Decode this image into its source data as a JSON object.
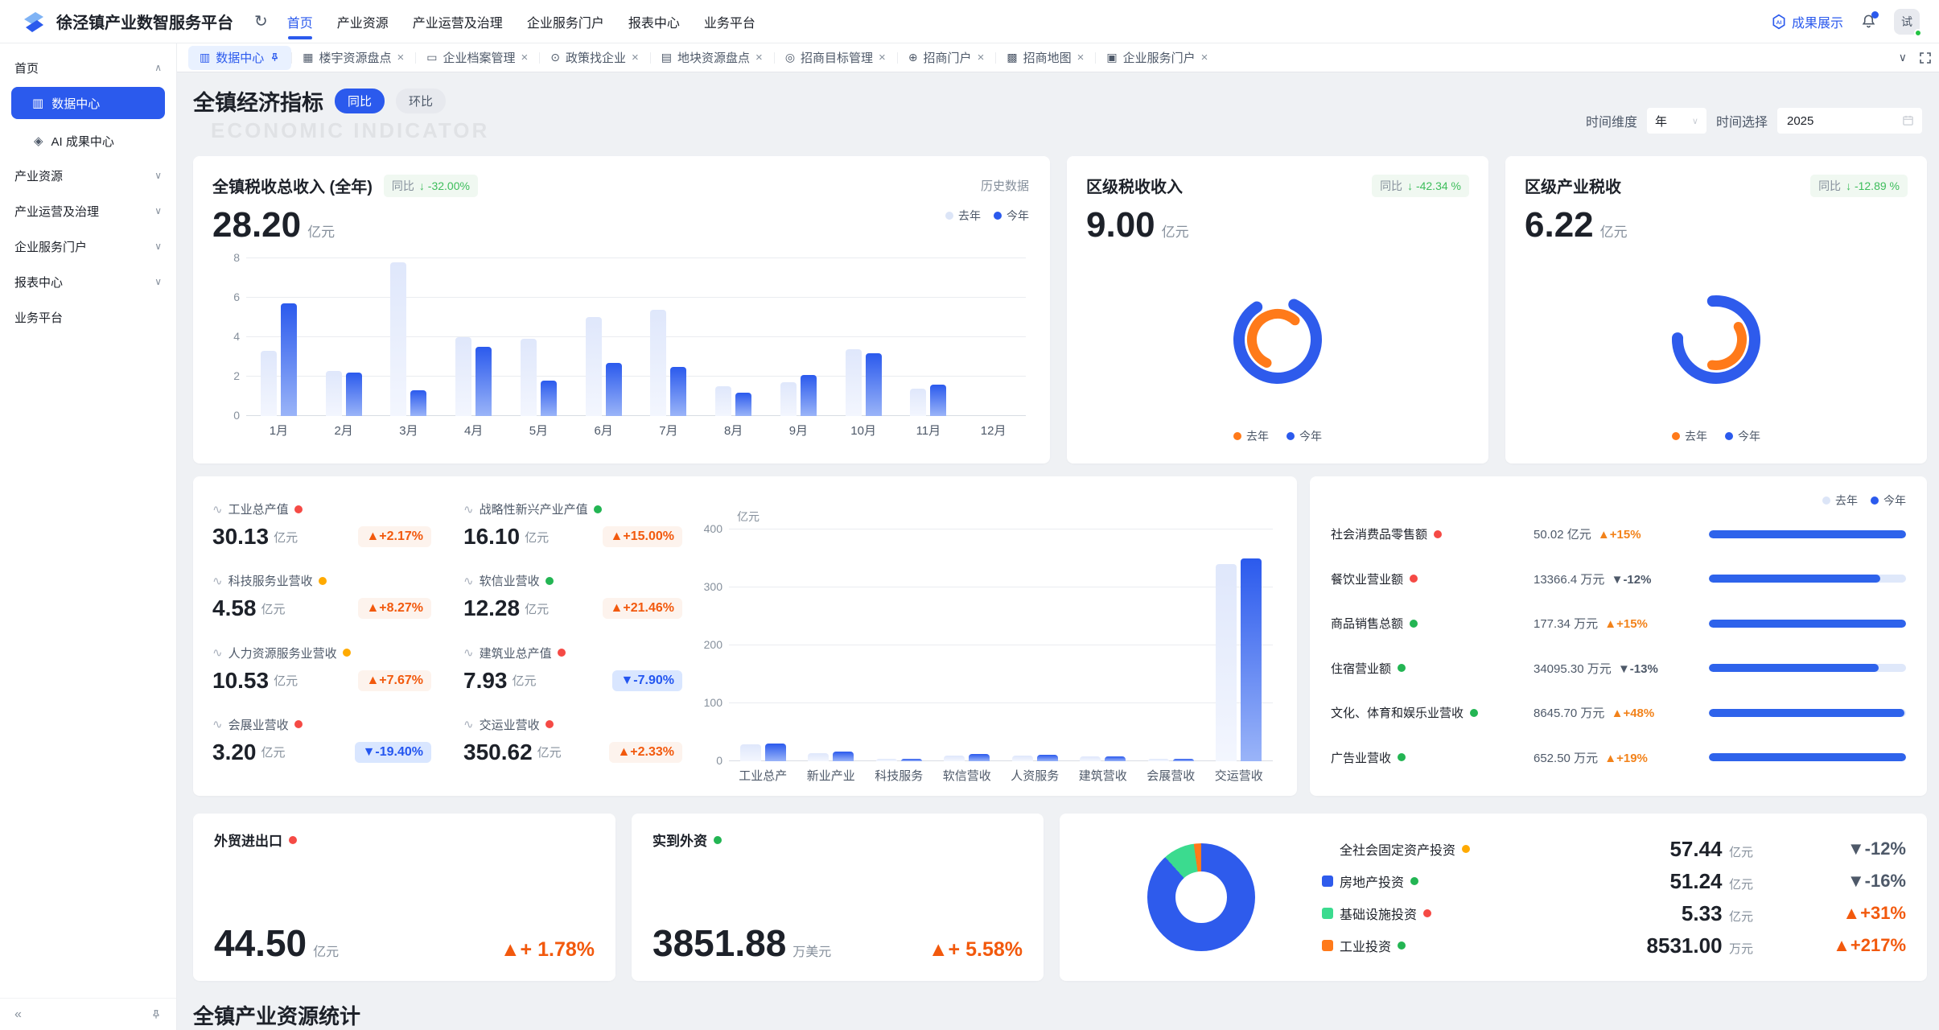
{
  "colors": {
    "accent_blue": "#2B5AED",
    "bar_blue": "#2E63EB",
    "last_year_bar": "#DFE7FB",
    "up_orange": "#F2590D",
    "down_pill_blue": "#2456F0",
    "badge_green": "#3DBD5B",
    "dot_red": "#F54A45",
    "dot_green": "#23B553",
    "dot_yellow": "#FFAA00",
    "ring_orange": "#FF7A1A",
    "donut_green": "#3BDB8F"
  },
  "navbar": {
    "title": "徐泾镇产业数智服务平台",
    "menu": [
      {
        "label": "首页",
        "state": "active"
      },
      {
        "label": "产业资源"
      },
      {
        "label": "产业运营及治理"
      },
      {
        "label": "企业服务门户"
      },
      {
        "label": "报表中心"
      },
      {
        "label": "业务平台"
      }
    ],
    "showcase_label": "成果展示",
    "avatar_text": "试"
  },
  "sidebar": {
    "items": [
      {
        "label": "首页",
        "kind": "group",
        "caret": "∧"
      },
      {
        "label": "数据中心",
        "kind": "child",
        "state": "active",
        "glyph": "▥"
      },
      {
        "label": "AI 成果中心",
        "kind": "child",
        "glyph": "◈"
      },
      {
        "label": "产业资源",
        "kind": "group",
        "caret": "∨"
      },
      {
        "label": "产业运营及治理",
        "kind": "group",
        "caret": "∨"
      },
      {
        "label": "企业服务门户",
        "kind": "group",
        "caret": "∨"
      },
      {
        "label": "报表中心",
        "kind": "group",
        "caret": "∨"
      },
      {
        "label": "业务平台",
        "kind": "group",
        "caret": ""
      }
    ]
  },
  "tabs": [
    {
      "label": "数据中心",
      "state": "active",
      "glyph": "▥"
    },
    {
      "label": "楼宇资源盘点",
      "glyph": "▦",
      "close": "×"
    },
    {
      "label": "企业档案管理",
      "glyph": "▭",
      "close": "×"
    },
    {
      "label": "政策找企业",
      "glyph": "⊙",
      "close": "×"
    },
    {
      "label": "地块资源盘点",
      "glyph": "▤",
      "close": "×"
    },
    {
      "label": "招商目标管理",
      "glyph": "◎",
      "close": "×"
    },
    {
      "label": "招商门户",
      "glyph": "⊕",
      "close": "×"
    },
    {
      "label": "招商地图",
      "glyph": "▩",
      "close": "×"
    },
    {
      "label": "企业服务门户",
      "glyph": "▣",
      "close": "×"
    }
  ],
  "header": {
    "title": "全镇经济指标",
    "toggle_active": "同比",
    "toggle_inactive": "环比",
    "watermark": "ECONOMIC INDICATOR",
    "time_dim_label": "时间维度",
    "time_dim_value": "年",
    "time_sel_label": "时间选择",
    "time_sel_value": "2025"
  },
  "tax_cards": {
    "main": {
      "title": "全镇税收总收入 (全年)",
      "badge_label": "同比",
      "badge_value": "↓ -32.00%",
      "value": "28.20",
      "unit": "亿元",
      "link": "历史数据",
      "legend_last": "去年",
      "legend_now": "今年"
    },
    "district": {
      "title": "区级税收收入",
      "badge_label": "同比",
      "badge_value": "↓ -42.34 %",
      "value": "9.00",
      "unit": "亿元",
      "legend_last": "去年",
      "legend_now": "今年"
    },
    "industry": {
      "title": "区级产业税收",
      "badge_label": "同比",
      "badge_value": "↓ -12.89 %",
      "value": "6.22",
      "unit": "亿元",
      "legend_last": "去年",
      "legend_now": "今年"
    }
  },
  "metrics": [
    {
      "label": "工业总产值",
      "dot": "red",
      "value": "30.13",
      "unit": "亿元",
      "change": "▲+2.17%",
      "dir": "up"
    },
    {
      "label": "战略性新兴产业产值",
      "dot": "green",
      "value": "16.10",
      "unit": "亿元",
      "change": "▲+15.00%",
      "dir": "up"
    },
    {
      "label": "科技服务业营收",
      "dot": "yellow",
      "value": "4.58",
      "unit": "亿元",
      "change": "▲+8.27%",
      "dir": "up"
    },
    {
      "label": "软信业营收",
      "dot": "green",
      "value": "12.28",
      "unit": "亿元",
      "change": "▲+21.46%",
      "dir": "up"
    },
    {
      "label": "人力资源服务业营收",
      "dot": "yellow",
      "value": "10.53",
      "unit": "亿元",
      "change": "▲+7.67%",
      "dir": "up"
    },
    {
      "label": "建筑业总产值",
      "dot": "red",
      "value": "7.93",
      "unit": "亿元",
      "change": "▼-7.90%",
      "dir": "down"
    },
    {
      "label": "会展业营收",
      "dot": "red",
      "value": "3.20",
      "unit": "亿元",
      "change": "▼-19.40%",
      "dir": "down"
    },
    {
      "label": "交运业营收",
      "dot": "red",
      "value": "350.62",
      "unit": "亿元",
      "change": "▲+2.33%",
      "dir": "up"
    }
  ],
  "consumption": {
    "legend_last": "去年",
    "legend_now": "今年",
    "rows": [
      {
        "label": "社会消费品零售额",
        "dot": "red",
        "value": "50.02",
        "unit": "亿元",
        "change": "▲+15%",
        "dir": "up",
        "ratio": 1
      },
      {
        "label": "餐饮业营业额",
        "dot": "red",
        "value": "13366.4",
        "unit": "万元",
        "change": "▼-12%",
        "dir": "down",
        "ratio": 0.87
      },
      {
        "label": "商品销售总额",
        "dot": "green",
        "value": "177.34",
        "unit": "万元",
        "change": "▲+15%",
        "dir": "up",
        "ratio": 1
      },
      {
        "label": "住宿营业额",
        "dot": "green",
        "value": "34095.30",
        "unit": "万元",
        "change": "▼-13%",
        "dir": "down",
        "ratio": 0.86
      },
      {
        "label": "文化、体育和娱乐业营收",
        "dot": "green",
        "value": "8645.70",
        "unit": "万元",
        "change": "▲+48%",
        "dir": "up",
        "ratio": 0.99
      },
      {
        "label": "广告业营收",
        "dot": "green",
        "value": "652.50",
        "unit": "万元",
        "change": "▲+19%",
        "dir": "up",
        "ratio": 1
      }
    ]
  },
  "trade": {
    "label": "外贸进出口",
    "dot": "red",
    "value": "44.50",
    "unit": "亿元",
    "change": "▲+ 1.78%"
  },
  "foreign": {
    "label": "实到外资",
    "dot": "green",
    "value": "3851.88",
    "unit": "万美元",
    "change": "▲+ 5.58%"
  },
  "investment": {
    "rows": [
      {
        "label": "全社会固定资产投资",
        "dot": "yellow",
        "square": "none",
        "value": "57.44",
        "unit": "亿元",
        "change": "▼-12%",
        "dir": "down"
      },
      {
        "label": "房地产投资",
        "dot": "green",
        "square": "sq-blue",
        "value": "51.24",
        "unit": "亿元",
        "change": "▼-16%",
        "dir": "down"
      },
      {
        "label": "基础设施投资",
        "dot": "red",
        "square": "sq-green",
        "value": "5.33",
        "unit": "亿元",
        "change": "▲+31%",
        "dir": "up"
      },
      {
        "label": "工业投资",
        "dot": "green",
        "square": "sq-orange",
        "value": "8531.00",
        "unit": "万元",
        "change": "▲+217%",
        "dir": "up"
      }
    ]
  },
  "bottom": {
    "title": "全镇产业资源统计"
  },
  "chart_data": [
    {
      "id": "monthly-tax",
      "type": "bar",
      "title": "全镇税收总收入 (全年) 月度对比",
      "categories": [
        "1月",
        "2月",
        "3月",
        "4月",
        "5月",
        "6月",
        "7月",
        "8月",
        "9月",
        "10月",
        "11月",
        "12月"
      ],
      "series": [
        {
          "name": "去年",
          "values": [
            3.3,
            2.3,
            7.8,
            4.0,
            3.9,
            5.0,
            5.4,
            1.5,
            1.7,
            3.4,
            1.4,
            0
          ]
        },
        {
          "name": "今年",
          "values": [
            5.7,
            2.2,
            1.3,
            3.5,
            1.8,
            2.7,
            2.5,
            1.2,
            2.1,
            3.2,
            1.6,
            0
          ]
        }
      ],
      "ylim": [
        0,
        8
      ],
      "yticks": [
        8,
        6,
        4,
        2,
        0
      ],
      "grid": true,
      "legend_position": "top-right"
    },
    {
      "id": "industry-output",
      "type": "bar",
      "ylabel": "亿元",
      "categories": [
        "工业总产",
        "新业产业",
        "科技服务",
        "软信营收",
        "人资服务",
        "建筑营收",
        "会展营收",
        "交运营收"
      ],
      "series": [
        {
          "name": "去年",
          "values": [
            29,
            14,
            4.2,
            10,
            9.8,
            8.6,
            4,
            340
          ]
        },
        {
          "name": "今年",
          "values": [
            30.13,
            16.1,
            4.58,
            12.28,
            10.53,
            7.93,
            3.2,
            350.62
          ]
        }
      ],
      "ylim": [
        0,
        400
      ],
      "yticks": [
        400,
        300,
        200,
        100,
        0
      ],
      "grid": true
    },
    {
      "id": "consumption-compare",
      "type": "bar",
      "orientation": "horizontal",
      "categories": [
        "社会消费品零售额",
        "餐饮业营业额",
        "商品销售总额",
        "住宿营业额",
        "文化、体育和娱乐业营收",
        "广告业营收"
      ],
      "values": [
        1,
        0.87,
        1,
        0.86,
        0.99,
        1
      ],
      "legend": [
        "去年",
        "今年"
      ]
    },
    {
      "id": "district-tax-ring",
      "type": "pie",
      "style": "ring-gauge",
      "series": [
        {
          "name": "今年",
          "fraction": 0.84
        },
        {
          "name": "去年",
          "fraction": 0.55
        }
      ]
    },
    {
      "id": "industry-tax-ring",
      "type": "pie",
      "style": "ring-gauge",
      "series": [
        {
          "name": "今年",
          "fraction": 0.77
        },
        {
          "name": "去年",
          "fraction": 0.36
        }
      ]
    },
    {
      "id": "investment-structure",
      "type": "pie",
      "slices": [
        {
          "name": "房地产投资",
          "color": "#2E5BEC",
          "deg": 318
        },
        {
          "name": "基础设施投资",
          "color": "#3BDB8F",
          "deg": 34
        },
        {
          "name": "工业投资",
          "color": "#FF7A1A",
          "deg": 8
        }
      ]
    }
  ]
}
